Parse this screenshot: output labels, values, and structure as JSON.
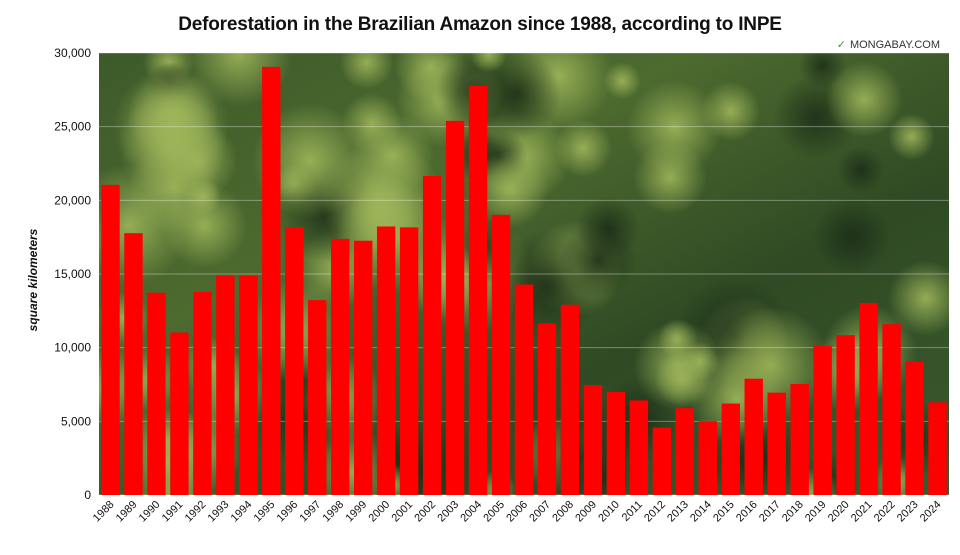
{
  "chart_data": {
    "type": "bar",
    "title": "Deforestation in the Brazilian Amazon since 1988, according to INPE",
    "ylabel": "square kilometers",
    "xlabel": "",
    "ylim": [
      0,
      30000
    ],
    "yticks": [
      0,
      5000,
      10000,
      15000,
      20000,
      25000,
      30000
    ],
    "ytick_labels": [
      "0",
      "5,000",
      "10,000",
      "15,000",
      "20,000",
      "25,000",
      "30,000"
    ],
    "grid": true,
    "bar_color": "#ff0000",
    "background": "aerial photo of rainforest canopy",
    "categories": [
      "1988",
      "1989",
      "1990",
      "1991",
      "1992",
      "1993",
      "1994",
      "1995",
      "1996",
      "1997",
      "1998",
      "1999",
      "2000",
      "2001",
      "2002",
      "2003",
      "2004",
      "2005",
      "2006",
      "2007",
      "2008",
      "2009",
      "2010",
      "2011",
      "2012",
      "2013",
      "2014",
      "2015",
      "2016",
      "2017",
      "2018",
      "2019",
      "2020",
      "2021",
      "2022",
      "2023",
      "2024"
    ],
    "values": [
      21050,
      17770,
      13730,
      11030,
      13786,
      14896,
      14896,
      29059,
      18161,
      13227,
      17383,
      17259,
      18226,
      18165,
      21651,
      25396,
      27772,
      19014,
      14286,
      11651,
      12911,
      7464,
      7000,
      6418,
      4571,
      5891,
      5012,
      6207,
      7893,
      6947,
      7536,
      10129,
      10851,
      13038,
      11594,
      9064,
      6288
    ]
  },
  "watermark": {
    "text": "MONGABAY.COM",
    "icon": "leaf-icon"
  }
}
